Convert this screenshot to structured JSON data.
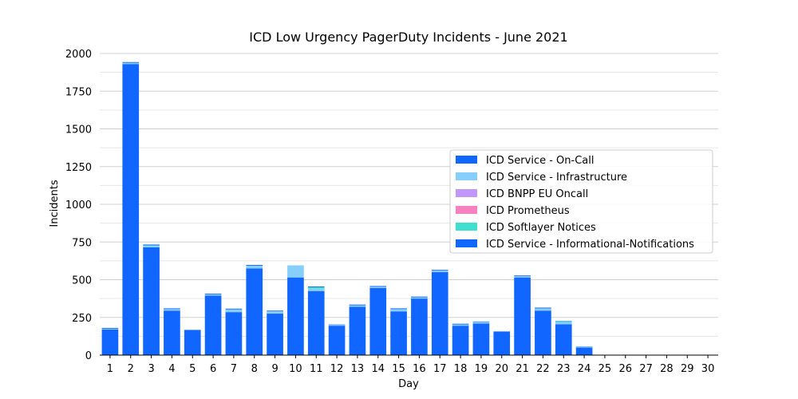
{
  "chart_data": {
    "type": "bar",
    "stacked": true,
    "title": "ICD Low Urgency PagerDuty Incidents - June 2021",
    "xlabel": "Day",
    "ylabel": "Incidents",
    "ylim": [
      0,
      2000
    ],
    "yticks": [
      "0",
      "250",
      "500",
      "750",
      "1000",
      "1250",
      "1500",
      "1750",
      "2000"
    ],
    "grid": "horizontal",
    "legend_position": "center-right",
    "categories": [
      "1",
      "2",
      "3",
      "4",
      "5",
      "6",
      "7",
      "8",
      "9",
      "10",
      "11",
      "12",
      "13",
      "14",
      "15",
      "16",
      "17",
      "18",
      "19",
      "20",
      "21",
      "22",
      "23",
      "24",
      "25",
      "26",
      "27",
      "28",
      "29",
      "30"
    ],
    "series": [
      {
        "name": "ICD Service - On-Call",
        "color": "#1166ff",
        "values": [
          170,
          1930,
          715,
          295,
          165,
          395,
          285,
          575,
          275,
          515,
          425,
          195,
          320,
          445,
          290,
          375,
          550,
          195,
          210,
          155,
          515,
          295,
          205,
          50,
          0,
          0,
          0,
          0,
          0,
          0
        ]
      },
      {
        "name": "ICD Service - Infrastructure",
        "color": "#87cefa",
        "values": [
          5,
          8,
          8,
          10,
          2,
          8,
          18,
          18,
          15,
          80,
          15,
          5,
          10,
          8,
          15,
          8,
          10,
          8,
          10,
          2,
          8,
          15,
          12,
          5,
          0,
          0,
          0,
          0,
          0,
          0
        ]
      },
      {
        "name": "ICD BNPP EU Oncall",
        "color": "#c397f9",
        "values": [
          0,
          0,
          0,
          0,
          0,
          0,
          0,
          0,
          0,
          0,
          0,
          0,
          0,
          0,
          0,
          0,
          0,
          0,
          0,
          0,
          0,
          0,
          0,
          0,
          0,
          0,
          0,
          0,
          0,
          0
        ]
      },
      {
        "name": "ICD Prometheus",
        "color": "#f781bf",
        "values": [
          0,
          0,
          0,
          0,
          0,
          0,
          0,
          0,
          0,
          0,
          0,
          0,
          0,
          0,
          0,
          0,
          0,
          0,
          0,
          0,
          0,
          0,
          0,
          0,
          0,
          0,
          0,
          0,
          0,
          0
        ]
      },
      {
        "name": "ICD Softlayer Notices",
        "color": "#40e0d0",
        "values": [
          0,
          0,
          5,
          0,
          0,
          0,
          0,
          0,
          0,
          0,
          10,
          0,
          0,
          0,
          0,
          0,
          0,
          0,
          0,
          0,
          0,
          0,
          5,
          0,
          0,
          0,
          0,
          0,
          0,
          0
        ]
      },
      {
        "name": "ICD Service - Informational-Notifications",
        "color": "#1166ff",
        "values": [
          5,
          5,
          5,
          5,
          2,
          5,
          5,
          5,
          5,
          0,
          5,
          3,
          5,
          5,
          5,
          5,
          5,
          5,
          3,
          2,
          5,
          5,
          3,
          2,
          0,
          0,
          0,
          0,
          0,
          0
        ]
      }
    ]
  }
}
